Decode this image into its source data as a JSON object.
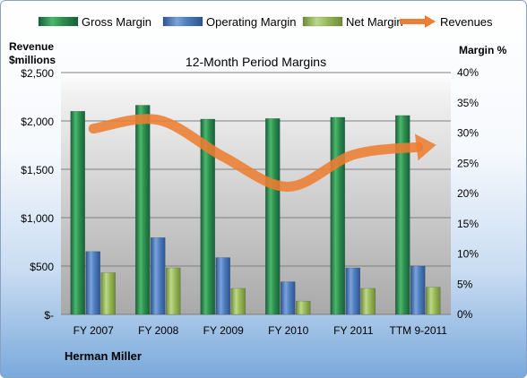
{
  "chart_data": {
    "type": "bar",
    "title": "12-Month Period Margins",
    "left_axis_label": [
      "Revenue",
      "$millions"
    ],
    "right_axis_label": "Margin %",
    "categories": [
      "FY 2007",
      "FY 2008",
      "FY 2009",
      "FY 2010",
      "FY 2011",
      "TTM 9-2011"
    ],
    "left_ylim": [
      0,
      2500
    ],
    "right_ylim": [
      0,
      40
    ],
    "left_ticks": [
      "$-",
      "$500",
      "$1,000",
      "$1,500",
      "$2,000",
      "$2,500"
    ],
    "right_ticks": [
      "0%",
      "5%",
      "10%",
      "15%",
      "20%",
      "25%",
      "30%",
      "35%",
      "40%"
    ],
    "grid": true,
    "legend_position": "top",
    "series": [
      {
        "name": "Gross Margin",
        "axis": "right",
        "color": "#2e8b4a",
        "values": [
          33.6,
          34.6,
          32.3,
          32.4,
          32.6,
          32.9
        ]
      },
      {
        "name": "Operating Margin",
        "axis": "right",
        "color": "#4f7fbf",
        "values": [
          10.4,
          12.7,
          9.4,
          5.4,
          7.7,
          8.0
        ]
      },
      {
        "name": "Net Margin",
        "axis": "right",
        "color": "#9bbb59",
        "values": [
          6.9,
          7.7,
          4.3,
          2.2,
          4.3,
          4.5
        ]
      },
      {
        "name": "Revenues",
        "axis": "left",
        "type": "line",
        "color": "#ed7d31",
        "values": [
          1920,
          2010,
          1630,
          1320,
          1650,
          1730
        ]
      }
    ],
    "footer": "Herman Miller"
  }
}
